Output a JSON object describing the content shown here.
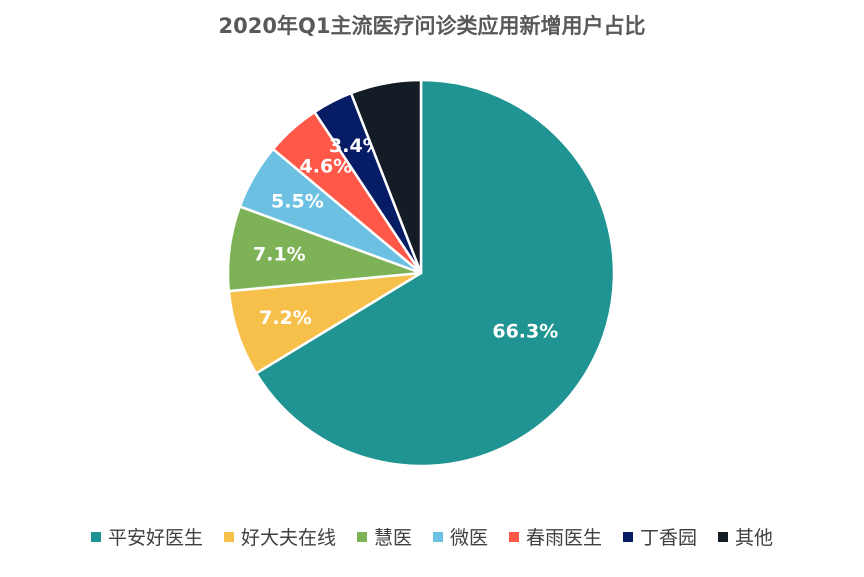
{
  "chart_data": {
    "type": "pie",
    "title": "2020年Q1主流医疗问诊类应用新增用户占比",
    "unit": "%",
    "start_angle_deg": 0,
    "direction": "clockwise",
    "slices": [
      {
        "name": "平安好医生",
        "value": 66.3,
        "label": "66.3%",
        "color": "#1f9492"
      },
      {
        "name": "好大夫在线",
        "value": 7.2,
        "label": "7.2%",
        "color": "#f7c04a"
      },
      {
        "name": "慧医",
        "value": 7.1,
        "label": "7.1%",
        "color": "#7db356"
      },
      {
        "name": "微医",
        "value": 5.5,
        "label": "5.5%",
        "color": "#6cc1e3"
      },
      {
        "name": "春雨医生",
        "value": 4.6,
        "label": "4.6%",
        "color": "#ff5748"
      },
      {
        "name": "丁香园",
        "value": 3.4,
        "label": "3.4%",
        "color": "#061d66"
      },
      {
        "name": "其他",
        "value": 5.9,
        "label": "",
        "color": "#141c25"
      }
    ],
    "legend": "bottom"
  }
}
